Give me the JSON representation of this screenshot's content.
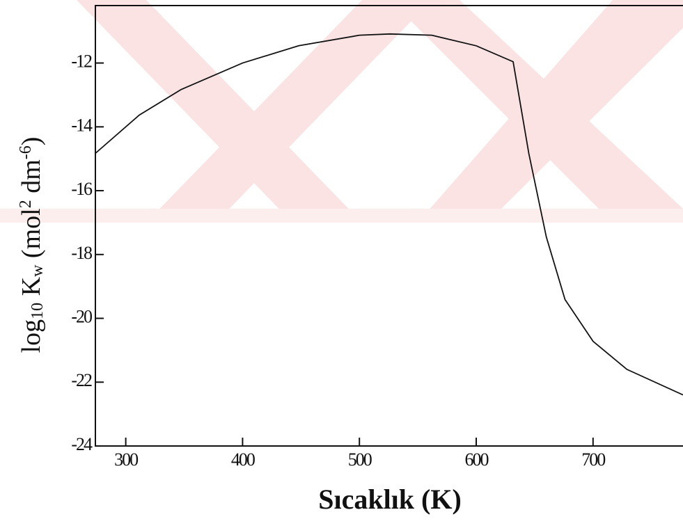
{
  "chart_data": {
    "type": "line",
    "x_label": "Sıcaklık (K)",
    "y_label": [
      "log",
      "10",
      " K",
      "w",
      " (mol",
      "2",
      " dm",
      "-6",
      ")"
    ],
    "x": [
      274,
      311.6,
      347.4,
      400,
      448,
      500,
      526,
      562,
      600,
      631.6,
      645,
      660,
      676,
      700,
      729,
      777
    ],
    "series": [
      {
        "color": "#111111",
        "values": [
          -14.83,
          -13.63,
          -12.83,
          -12.0,
          -11.46,
          -11.13,
          -11.09,
          -11.13,
          -11.46,
          -11.96,
          -14.83,
          -17.45,
          -19.41,
          -20.72,
          -21.6,
          -22.4
        ]
      }
    ],
    "xlim": [
      274,
      777
    ],
    "xticks": [
      300,
      400,
      500,
      600,
      700
    ],
    "ylim": [
      -24,
      -10.2
    ],
    "yticks": [
      -12,
      -14,
      -16,
      -18,
      -20,
      -22,
      -24
    ],
    "grid": false
  }
}
